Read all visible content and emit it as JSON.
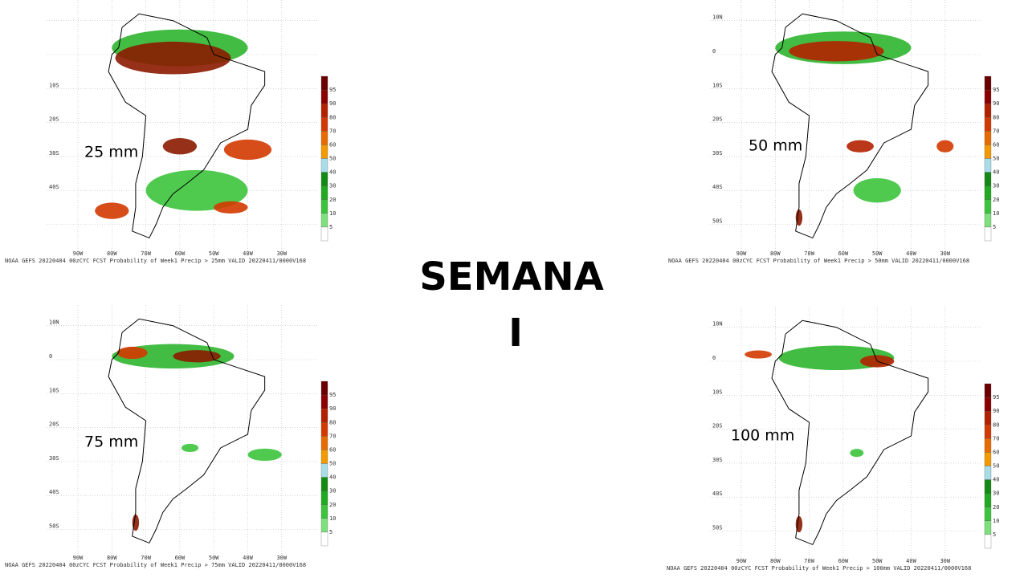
{
  "title": "SEMANA",
  "subtitle": "I",
  "colorbar": [
    "95",
    "90",
    "80",
    "70",
    "60",
    "50",
    "40",
    "30",
    "20",
    "10",
    "5"
  ],
  "panels": [
    {
      "label": "25 mm",
      "caption": "NOAA GEFS 20220404 00zCYC FCST Probability of Week1 Precip > 25mm  VALID 20220411/0000V168",
      "lat_labels": [
        "10S",
        "20S",
        "30S",
        "40S"
      ],
      "lon_labels": [
        "90W",
        "80W",
        "70W",
        "60W",
        "50W",
        "40W",
        "30W"
      ]
    },
    {
      "label": "50 mm",
      "caption": "NOAA GEFS 20220404 00zCYC FCST Probability of Week1 Precip > 50mm  VALID 20220411/0000V168",
      "lat_labels": [
        "10N",
        "0",
        "10S",
        "20S",
        "30S",
        "40S",
        "50S"
      ],
      "lon_labels": [
        "90W",
        "80W",
        "70W",
        "60W",
        "50W",
        "40W",
        "30W"
      ]
    },
    {
      "label": "75 mm",
      "caption": "NOAA GEFS 20220404 00zCYC FCST Probability of Week1 Precip > 75mm  VALID 20220411/0000V168",
      "lat_labels": [
        "10N",
        "0",
        "10S",
        "20S",
        "30S",
        "40S",
        "50S"
      ],
      "lon_labels": [
        "90W",
        "80W",
        "70W",
        "60W",
        "50W",
        "40W",
        "30W"
      ]
    },
    {
      "label": "100 mm",
      "caption": "NOAA GEFS 20220404 00zCYC FCST Probability of Week1 Precip > 100mm  VALID 20220411/0000V168",
      "lat_labels": [
        "10N",
        "0",
        "10S",
        "20S",
        "30S",
        "40S",
        "50S"
      ],
      "lon_labels": [
        "90W",
        "80W",
        "70W",
        "60W",
        "50W",
        "40W",
        "30W"
      ]
    }
  ]
}
